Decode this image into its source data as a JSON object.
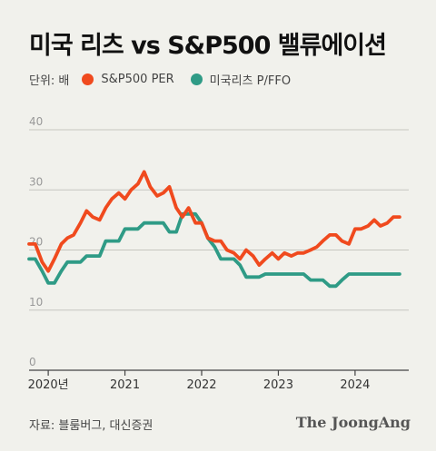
{
  "title": "미국 리츠 vs S&P500 밸류에이션",
  "unit_label": "단위: 배",
  "source": "자료: 블룸버그, 대신증권",
  "brand": "The JoongAng",
  "colors": {
    "background": "#f1f1ec",
    "grid": "#c6c6c0",
    "axis": "#444444"
  },
  "chart_data": {
    "type": "line",
    "title": "미국 리츠 vs S&P500 밸류에이션",
    "ylabel": "단위: 배",
    "ylim": [
      0,
      40
    ],
    "yticks": [
      0,
      10,
      20,
      30,
      40
    ],
    "xlim": [
      2020.0,
      2024.95
    ],
    "xticks": [
      {
        "value": 2020.25,
        "label": "2020년"
      },
      {
        "value": 2021.25,
        "label": "2021"
      },
      {
        "value": 2022.25,
        "label": "2022"
      },
      {
        "value": 2023.25,
        "label": "2023"
      },
      {
        "value": 2024.25,
        "label": "2024"
      }
    ],
    "grid": "horizontal",
    "legend": "top-left",
    "series": [
      {
        "name": "S&P500 PER",
        "color": "#f04a1e",
        "x": [
          2020.0,
          2020.08,
          2020.17,
          2020.25,
          2020.33,
          2020.42,
          2020.5,
          2020.58,
          2020.67,
          2020.75,
          2020.83,
          2020.92,
          2021.0,
          2021.08,
          2021.17,
          2021.25,
          2021.33,
          2021.42,
          2021.5,
          2021.58,
          2021.67,
          2021.75,
          2021.83,
          2021.92,
          2022.0,
          2022.08,
          2022.17,
          2022.25,
          2022.33,
          2022.42,
          2022.5,
          2022.58,
          2022.67,
          2022.75,
          2022.83,
          2022.92,
          2023.0,
          2023.08,
          2023.17,
          2023.25,
          2023.33,
          2023.42,
          2023.5,
          2023.58,
          2023.67,
          2023.75,
          2023.83,
          2023.92,
          2024.0,
          2024.08,
          2024.17,
          2024.25,
          2024.33,
          2024.42,
          2024.5,
          2024.58,
          2024.67,
          2024.75,
          2024.83
        ],
        "y": [
          21,
          21,
          18,
          16.5,
          18.5,
          21,
          22,
          22.5,
          24.5,
          26.5,
          25.5,
          25,
          27,
          28.5,
          29.5,
          28.5,
          30,
          31,
          33,
          30.5,
          29,
          29.5,
          30.5,
          27,
          25.5,
          27,
          24.5,
          24.5,
          22,
          21.5,
          21.5,
          20,
          19.5,
          18.5,
          20,
          19,
          17.5,
          18.5,
          19.5,
          18.5,
          19.5,
          19,
          19.5,
          19.5,
          20,
          20.5,
          21.5,
          22.5,
          22.5,
          21.5,
          21,
          23.5,
          23.5,
          24,
          25,
          24,
          24.5,
          25.5,
          25.5
        ]
      },
      {
        "name": "미국리츠 P/FFO",
        "color": "#2f9b86",
        "x": [
          2020.0,
          2020.08,
          2020.17,
          2020.25,
          2020.33,
          2020.42,
          2020.5,
          2020.58,
          2020.67,
          2020.75,
          2020.83,
          2020.92,
          2021.0,
          2021.08,
          2021.17,
          2021.25,
          2021.33,
          2021.42,
          2021.5,
          2021.58,
          2021.67,
          2021.75,
          2021.83,
          2021.92,
          2022.0,
          2022.08,
          2022.17,
          2022.25,
          2022.33,
          2022.42,
          2022.5,
          2022.58,
          2022.67,
          2022.75,
          2022.83,
          2022.92,
          2023.0,
          2023.08,
          2023.17,
          2023.25,
          2023.33,
          2023.42,
          2023.5,
          2023.58,
          2023.67,
          2023.75,
          2023.83,
          2023.92,
          2024.0,
          2024.08,
          2024.17,
          2024.25,
          2024.33,
          2024.42,
          2024.5,
          2024.58,
          2024.67,
          2024.75,
          2024.83
        ],
        "y": [
          18.5,
          18.5,
          16.5,
          14.5,
          14.5,
          16.5,
          18,
          18,
          18,
          19,
          19,
          19,
          21.5,
          21.5,
          21.5,
          23.5,
          23.5,
          23.5,
          24.5,
          24.5,
          24.5,
          24.5,
          23,
          23,
          26,
          26,
          26,
          24.5,
          22,
          20.5,
          18.5,
          18.5,
          18.5,
          17.5,
          15.5,
          15.5,
          15.5,
          16,
          16,
          16,
          16,
          16,
          16,
          16,
          15,
          15,
          15,
          14,
          14,
          15,
          16,
          16,
          16,
          16,
          16,
          16,
          16,
          16,
          16
        ]
      }
    ]
  }
}
